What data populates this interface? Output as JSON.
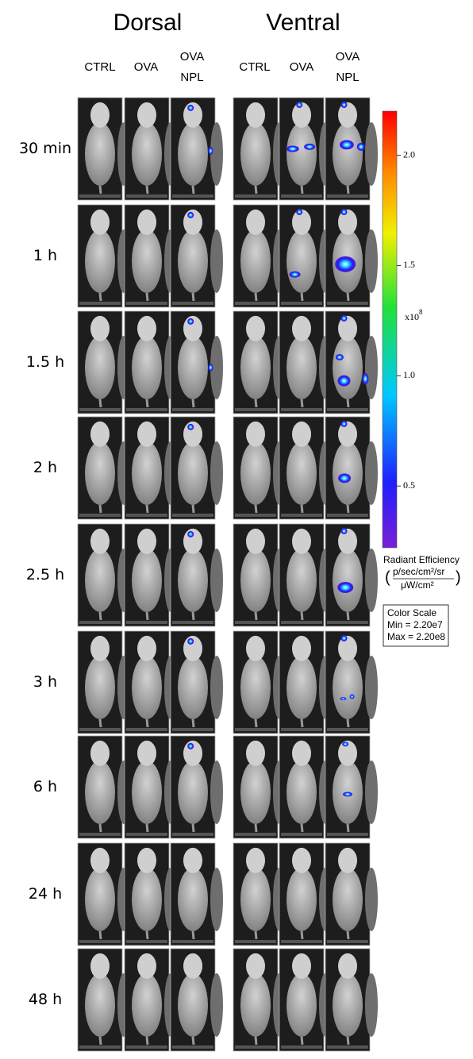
{
  "header": {
    "dorsal": "Dorsal",
    "ventral": "Ventral"
  },
  "dorsal_columns": [
    "CTRL",
    "OVA",
    [
      "OVA",
      "NPL"
    ]
  ],
  "ventral_columns": [
    "CTRL",
    "OVA",
    [
      "OVA",
      "NPL"
    ]
  ],
  "rows": [
    "30 min",
    "1 h",
    "1.5 h",
    "2 h",
    "2.5 h",
    "3 h",
    "6 h",
    "24 h",
    "48 h"
  ],
  "colorbar": {
    "lim": [
      0.22,
      2.2
    ],
    "ticks": [
      {
        "value": 2,
        "label": "2.0"
      },
      1.5,
      {
        "value": 1,
        "label": "1.0"
      },
      0.5
    ],
    "exponent_base": "x10",
    "exponent": "8",
    "title": "Radiant Efficiency",
    "unit_numerator": "p/sec/cm²/sr",
    "unit_denominator": "μW/cm²",
    "scale_box": [
      "Color Scale",
      "Min = 2.20e7",
      "Max = 2.20e8"
    ]
  }
}
